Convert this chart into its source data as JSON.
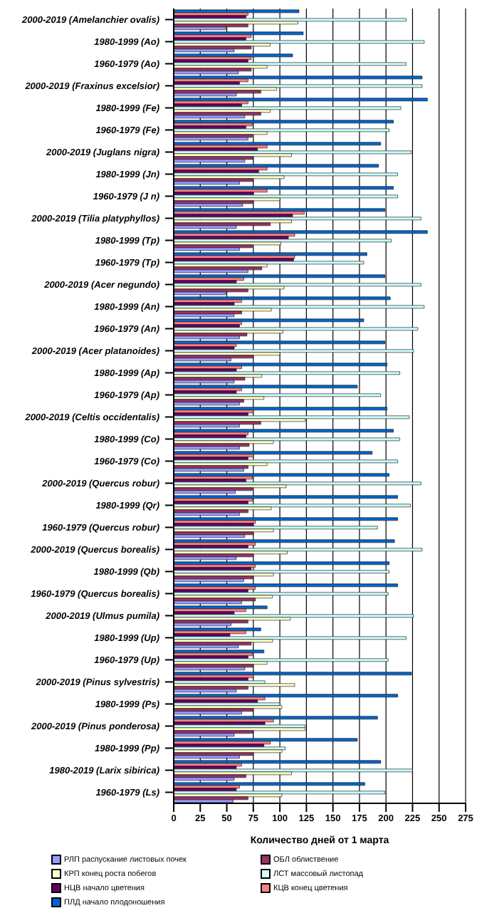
{
  "chart_data": {
    "type": "bar",
    "orientation": "horizontal",
    "xlabel": "Количество дней от 1 марта",
    "xlim": [
      0,
      275
    ],
    "xticks": [
      0,
      25,
      50,
      75,
      100,
      125,
      150,
      175,
      200,
      225,
      250,
      275
    ],
    "grid": "x",
    "legend": "bottom",
    "categories": [
      "2000-2019 (Amelanchier ovalis)",
      "1980-1999 (Ao)",
      "1960-1979 (Ao)",
      "2000-2019 (Fraxinus excelsior)",
      "1980-1999 (Fe)",
      "1960-1979 (Fe)",
      "2000-2019 (Juglans nigra)",
      "1980-1999 (Jn)",
      "1960-1979 (J n)",
      "2000-2019 (Tilia platyphyllos)",
      "1980-1999 (Tp)",
      "1960-1979 (Tp)",
      "2000-2019 (Acer negundo)",
      "1980-1999 (An)",
      "1960-1979 (An)",
      "2000-2019 (Acer platanoides)",
      "1980-1999 (Ap)",
      "1960-1979 (Ap)",
      "2000-2019 (Celtis  occidentalis)",
      "1980-1999 (Co)",
      "1960-1979 (Co)",
      "2000-2019 (Quercus robur)",
      "1980-1999 (Qr)",
      "1960-1979 (Quercus robur)",
      "2000-2019 (Quercus borealis)",
      "1980-1999 (Qb)",
      "1960-1979  (Quercus borealis)",
      "2000-2019 (Ulmus pumila)",
      "1980-1999 (Up)",
      "1960-1979 (Up)",
      "2000-2019  (Pinus sylvestris)",
      "1980-1999 (Ps)",
      "2000-2019 (Pinus ponderosa)",
      "1980-1999 (Pp)",
      "1980-2019 (Larix sibirica)",
      "1960-1979 (Ls)"
    ],
    "series": [
      {
        "name": "РЛП распускание листовых почек",
        "color": "#9999ff",
        "values": [
          49,
          57,
          61,
          59,
          67,
          70,
          67,
          62,
          65,
          59,
          62,
          70,
          49,
          57,
          62,
          54,
          57,
          62,
          62,
          62,
          66,
          58,
          62,
          67,
          59,
          66,
          64,
          54,
          61,
          67,
          59,
          64,
          57,
          62,
          57,
          56
        ]
      },
      {
        "name": "ОБЛ облиствение",
        "color": "#993366",
        "values": [
          70,
          73,
          73,
          82,
          82,
          74,
          75,
          75,
          75,
          91,
          74,
          83,
          70,
          64,
          69,
          75,
          67,
          66,
          82,
          71,
          70,
          74,
          70,
          75,
          75,
          75,
          77,
          70,
          73,
          75,
          70,
          75,
          75,
          75,
          68,
          70
        ]
      },
      {
        "name": "КРП конец роста побегов",
        "color": "#ffffcc",
        "values": [
          117,
          91,
          88,
          97,
          91,
          88,
          111,
          104,
          100,
          111,
          101,
          88,
          104,
          92,
          103,
          100,
          83,
          85,
          124,
          94,
          88,
          106,
          92,
          94,
          107,
          94,
          93,
          110,
          93,
          88,
          114,
          102,
          124,
          102,
          111,
          102
        ]
      },
      {
        "name": "ЛСТ массовый листопад",
        "color": "#ccffff",
        "values": [
          219,
          236,
          219,
          234,
          214,
          203,
          224,
          211,
          211,
          233,
          205,
          179,
          233,
          236,
          230,
          226,
          213,
          195,
          222,
          213,
          211,
          233,
          223,
          192,
          234,
          203,
          202,
          226,
          219,
          202,
          86,
          100,
          124,
          105,
          225,
          199
        ]
      },
      {
        "name": "НЦВ начало цветения",
        "color": "#660066",
        "values": [
          68,
          68,
          70,
          62,
          64,
          68,
          79,
          80,
          75,
          112,
          108,
          113,
          59,
          57,
          62,
          57,
          59,
          59,
          70,
          68,
          70,
          68,
          70,
          75,
          70,
          73,
          70,
          57,
          53,
          70,
          70,
          79,
          86,
          85,
          59,
          59
        ]
      },
      {
        "name": "КЦВ конец цветения",
        "color": "#ff8080",
        "values": [
          70,
          73,
          73,
          70,
          70,
          74,
          88,
          88,
          88,
          123,
          114,
          114,
          66,
          64,
          64,
          59,
          64,
          64,
          75,
          70,
          75,
          74,
          74,
          77,
          77,
          77,
          77,
          68,
          68,
          74,
          75,
          86,
          94,
          91,
          64,
          62
        ]
      },
      {
        "name": "ПЛД начало плодоношения",
        "color": "#0066cc",
        "values": [
          118,
          122,
          112,
          234,
          239,
          207,
          195,
          193,
          207,
          199,
          239,
          182,
          199,
          204,
          179,
          199,
          201,
          173,
          201,
          207,
          187,
          203,
          211,
          211,
          208,
          203,
          211,
          88,
          82,
          85,
          224,
          211,
          192,
          173,
          195,
          180
        ]
      }
    ]
  }
}
